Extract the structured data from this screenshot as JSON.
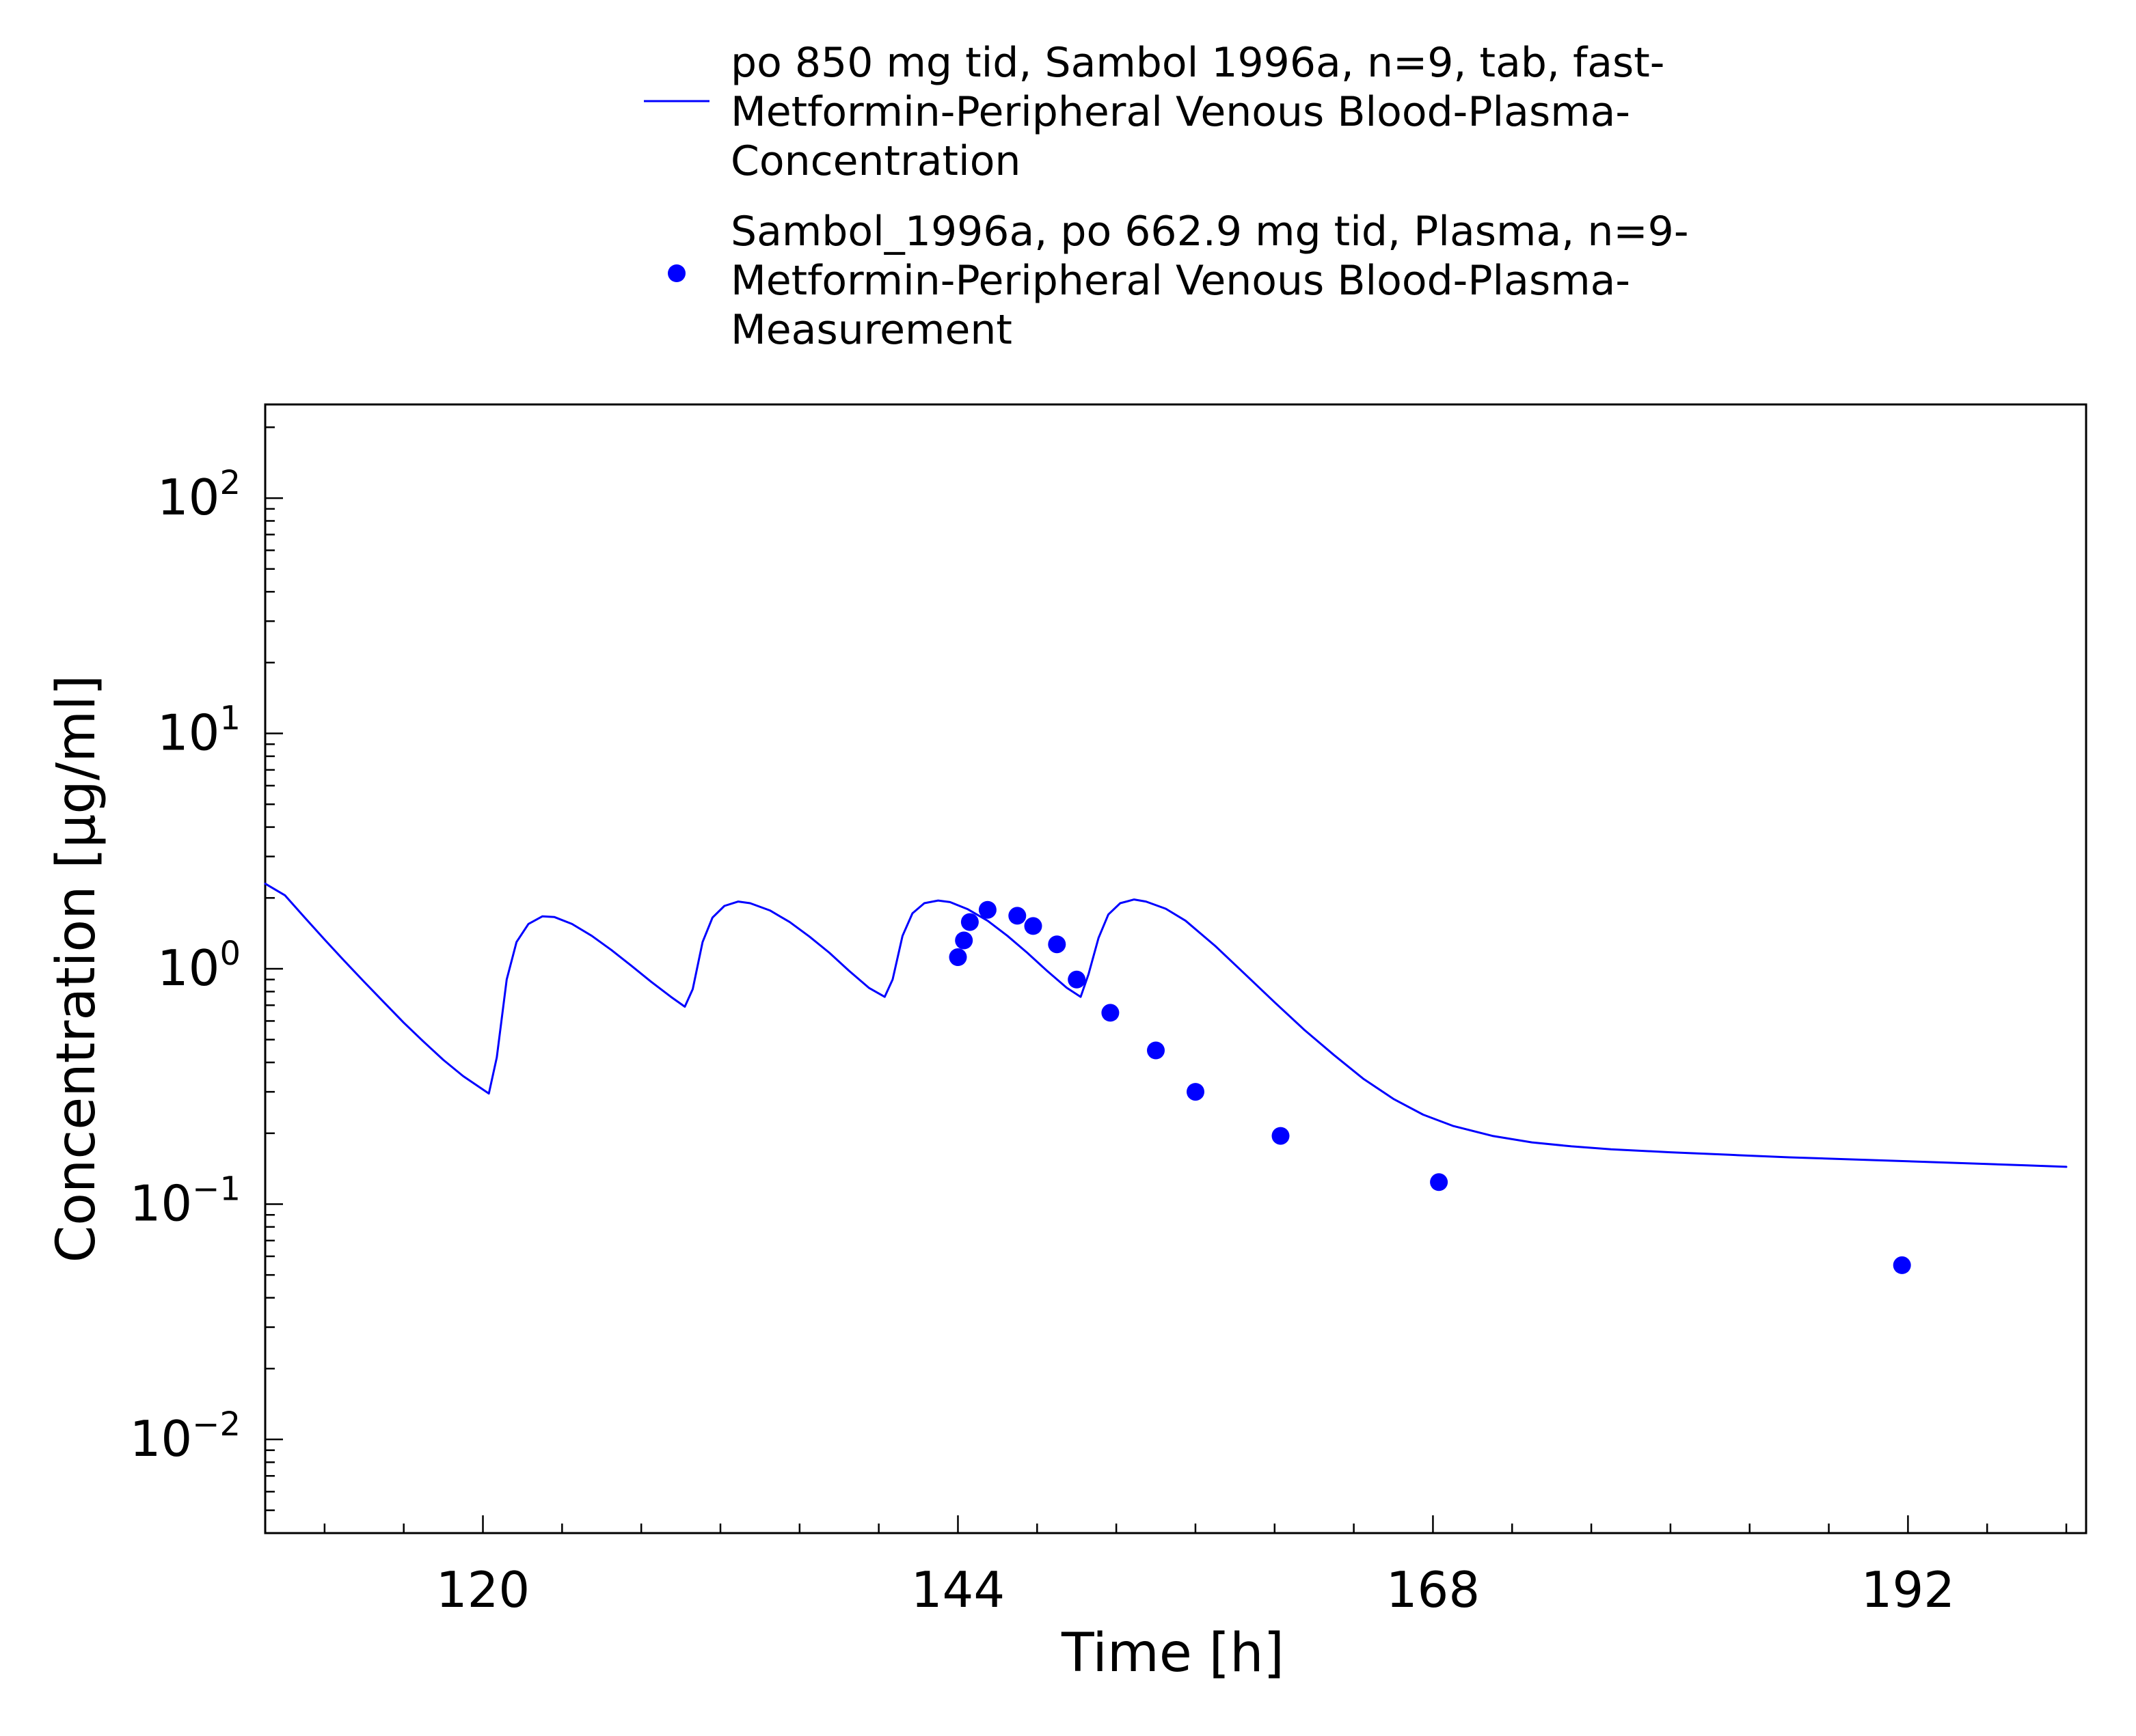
{
  "chart_data": {
    "type": "line+scatter",
    "xlabel": "Time [h]",
    "ylabel": "Concentration [µg/ml]",
    "yscale": "log",
    "xlim": [
      109,
      201
    ],
    "ylim": [
      0.004,
      250
    ],
    "grid": false,
    "legend_position": "top",
    "x_ticks": [
      120,
      144,
      168,
      192
    ],
    "y_ticks": [
      {
        "value": 0.01,
        "base": "10",
        "exp": "−2"
      },
      {
        "value": 0.1,
        "base": "10",
        "exp": "−1"
      },
      {
        "value": 1,
        "base": "10",
        "exp": "0"
      },
      {
        "value": 10,
        "base": "10",
        "exp": "1"
      },
      {
        "value": 100,
        "base": "10",
        "exp": "2"
      }
    ],
    "series": [
      {
        "name": "po 850 mg tid, Sambol 1996a, n=9, tab, fast-Metformin-Peripheral Venous Blood-Plasma-Concentration",
        "legend_lines": [
          "po 850 mg tid, Sambol 1996a, n=9, tab, fast-",
          "Metformin-Peripheral Venous Blood-Plasma-",
          "Concentration"
        ],
        "kind": "line",
        "color": "#0000ff",
        "points": [
          [
            109,
            2.3
          ],
          [
            110,
            2.05
          ],
          [
            111,
            1.65
          ],
          [
            112,
            1.33
          ],
          [
            113,
            1.08
          ],
          [
            114,
            0.88
          ],
          [
            115,
            0.72
          ],
          [
            116,
            0.59
          ],
          [
            117,
            0.49
          ],
          [
            118,
            0.41
          ],
          [
            119,
            0.35
          ],
          [
            120.3,
            0.295
          ],
          [
            120.7,
            0.42
          ],
          [
            121.2,
            0.9
          ],
          [
            121.7,
            1.3
          ],
          [
            122.3,
            1.55
          ],
          [
            123,
            1.67
          ],
          [
            123.6,
            1.66
          ],
          [
            124.5,
            1.55
          ],
          [
            125.5,
            1.38
          ],
          [
            126.5,
            1.2
          ],
          [
            127.5,
            1.03
          ],
          [
            128.5,
            0.88
          ],
          [
            129.5,
            0.76
          ],
          [
            130.2,
            0.69
          ],
          [
            130.6,
            0.82
          ],
          [
            131.1,
            1.3
          ],
          [
            131.6,
            1.65
          ],
          [
            132.2,
            1.85
          ],
          [
            132.9,
            1.93
          ],
          [
            133.5,
            1.9
          ],
          [
            134.5,
            1.77
          ],
          [
            135.5,
            1.58
          ],
          [
            136.5,
            1.37
          ],
          [
            137.5,
            1.17
          ],
          [
            138.5,
            0.98
          ],
          [
            139.5,
            0.83
          ],
          [
            140.3,
            0.76
          ],
          [
            140.7,
            0.9
          ],
          [
            141.2,
            1.38
          ],
          [
            141.7,
            1.72
          ],
          [
            142.3,
            1.9
          ],
          [
            143,
            1.95
          ],
          [
            143.6,
            1.92
          ],
          [
            144.5,
            1.79
          ],
          [
            145.5,
            1.6
          ],
          [
            146.5,
            1.38
          ],
          [
            147.5,
            1.17
          ],
          [
            148.5,
            0.98
          ],
          [
            149.5,
            0.83
          ],
          [
            150.2,
            0.76
          ],
          [
            150.6,
            0.95
          ],
          [
            151.1,
            1.35
          ],
          [
            151.6,
            1.7
          ],
          [
            152.2,
            1.9
          ],
          [
            152.9,
            1.97
          ],
          [
            153.5,
            1.93
          ],
          [
            154.5,
            1.8
          ],
          [
            155.5,
            1.6
          ],
          [
            157,
            1.25
          ],
          [
            158.5,
            0.95
          ],
          [
            160,
            0.72
          ],
          [
            161.5,
            0.55
          ],
          [
            163,
            0.43
          ],
          [
            164.5,
            0.34
          ],
          [
            166,
            0.28
          ],
          [
            167.5,
            0.24
          ],
          [
            169,
            0.215
          ],
          [
            171,
            0.195
          ],
          [
            173,
            0.183
          ],
          [
            175,
            0.176
          ],
          [
            177,
            0.171
          ],
          [
            180,
            0.166
          ],
          [
            183,
            0.162
          ],
          [
            186,
            0.158
          ],
          [
            189,
            0.155
          ],
          [
            192,
            0.152
          ],
          [
            195,
            0.149
          ],
          [
            198,
            0.146
          ],
          [
            200,
            0.144
          ]
        ]
      },
      {
        "name": "Sambol_1996a, po 662.9 mg tid, Plasma, n=9-Metformin-Peripheral Venous Blood-Plasma-Measurement",
        "legend_lines": [
          "Sambol_1996a, po 662.9 mg tid, Plasma, n=9-",
          "Metformin-Peripheral Venous Blood-Plasma-",
          "Measurement"
        ],
        "kind": "scatter",
        "color": "#0000ff",
        "points": [
          [
            144.0,
            1.12
          ],
          [
            144.3,
            1.32
          ],
          [
            144.6,
            1.58
          ],
          [
            145.5,
            1.78
          ],
          [
            147.0,
            1.68
          ],
          [
            147.8,
            1.52
          ],
          [
            149.0,
            1.27
          ],
          [
            150.0,
            0.9
          ],
          [
            151.7,
            0.65
          ],
          [
            154.0,
            0.45
          ],
          [
            156.0,
            0.3
          ],
          [
            160.3,
            0.195
          ],
          [
            168.3,
            0.124
          ],
          [
            191.7,
            0.055
          ]
        ]
      }
    ]
  }
}
